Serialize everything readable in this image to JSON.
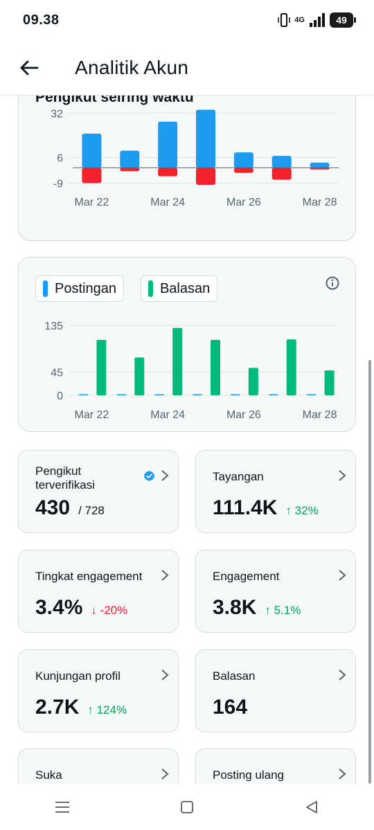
{
  "status_bar": {
    "time": "09.38",
    "network": "4G",
    "battery": "49"
  },
  "header": {
    "title": "Analitik Akun"
  },
  "chart1": {
    "partial_title": "Pengikut seiring waktu",
    "chart_data": {
      "type": "bar",
      "categories": [
        "Mar 22",
        "Mar 23",
        "Mar 24",
        "Mar 25",
        "Mar 26",
        "Mar 27",
        "Mar 28"
      ],
      "x_tick_labels": [
        "Mar 22",
        "Mar 24",
        "Mar 26",
        "Mar 28"
      ],
      "y_ticks": [
        32,
        6,
        -9
      ],
      "ylim": [
        -10,
        35
      ],
      "series": [
        {
          "values": [
            20,
            10,
            27,
            34,
            9,
            7,
            3
          ],
          "color": "#1d9bf0"
        },
        {
          "values": [
            -9,
            -2,
            -5,
            -10,
            -3,
            -7,
            -1
          ],
          "color": "#f4212e"
        }
      ],
      "baseline": 0
    }
  },
  "chart2": {
    "legend": [
      {
        "label": "Postingan",
        "color": "#1d9bf0"
      },
      {
        "label": "Balasan",
        "color": "#00ba7c"
      }
    ],
    "chart_data": {
      "type": "bar",
      "categories": [
        "Mar 22",
        "Mar 23",
        "Mar 24",
        "Mar 25",
        "Mar 26",
        "Mar 27",
        "Mar 28"
      ],
      "x_tick_labels": [
        "Mar 22",
        "Mar 24",
        "Mar 26",
        "Mar 28"
      ],
      "y_ticks": [
        135,
        45,
        0
      ],
      "ylim": [
        0,
        135
      ],
      "series": [
        {
          "name": "Postingan",
          "values": [
            1,
            1,
            1,
            2,
            2,
            2,
            1
          ],
          "color": "#1d9bf0"
        },
        {
          "name": "Balasan",
          "values": [
            107,
            73,
            130,
            107,
            53,
            108,
            48
          ],
          "color": "#00ba7c"
        }
      ]
    }
  },
  "stats": [
    {
      "title": "Pengikut terverifikasi",
      "value": "430",
      "sub": "/ 728",
      "delta": "",
      "dir": "",
      "verified": true
    },
    {
      "title": "Tayangan",
      "value": "111.4K",
      "sub": "",
      "delta": "↑ 32%",
      "dir": "up"
    },
    {
      "title": "Tingkat engagement",
      "value": "3.4%",
      "sub": "",
      "delta": "↓ -20%",
      "dir": "down"
    },
    {
      "title": "Engagement",
      "value": "3.8K",
      "sub": "",
      "delta": "↑ 5.1%",
      "dir": "up"
    },
    {
      "title": "Kunjungan profil",
      "value": "2.7K",
      "sub": "",
      "delta": "↑ 124%",
      "dir": "up"
    },
    {
      "title": "Balasan",
      "value": "164",
      "sub": "",
      "delta": "",
      "dir": ""
    },
    {
      "title": "Suka",
      "value": "",
      "sub": "",
      "delta": "",
      "dir": ""
    },
    {
      "title": "Posting ulang",
      "value": "",
      "sub": "",
      "delta": "",
      "dir": ""
    }
  ],
  "colors": {
    "accent": "#1d9bf0",
    "positive": "#00a35c",
    "negative": "#f4212e",
    "card_bg": "#f7f9f9",
    "border": "#d6dbdf"
  },
  "icons": {
    "back": "arrow-left-icon",
    "info": "info-icon",
    "chevron": "chevron-right-icon",
    "verified": "verified-badge-icon"
  }
}
